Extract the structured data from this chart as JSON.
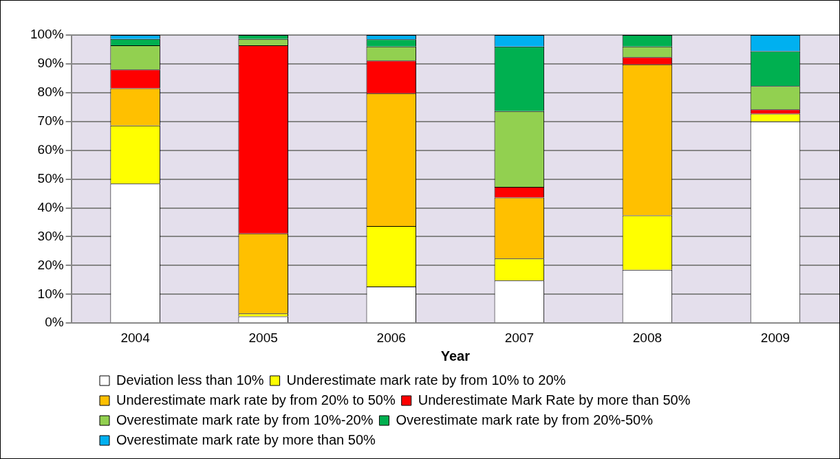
{
  "chart_data": {
    "type": "bar",
    "stacked": true,
    "xlabel": "Year",
    "categories": [
      "2004",
      "2005",
      "2006",
      "2007",
      "2008",
      "2009"
    ],
    "series": [
      {
        "name": "Deviation less than 10%",
        "color": "#ffffff",
        "values": [
          48.4,
          2.3,
          12.7,
          14.8,
          18.5,
          70.0
        ]
      },
      {
        "name": "Underestimate mark rate by from 10% to 20%",
        "color": "#ffff00",
        "values": [
          20.2,
          1.0,
          21.0,
          7.6,
          18.9,
          2.7
        ]
      },
      {
        "name": "Underestimate mark rate by from 20% to 50%",
        "color": "#ffc000",
        "values": [
          12.9,
          27.8,
          46.1,
          21.2,
          52.4,
          0
        ]
      },
      {
        "name": "Underestimate Mark Rate by more than 50%",
        "color": "#ff0000",
        "values": [
          6.5,
          65.3,
          11.3,
          3.7,
          2.5,
          1.5
        ]
      },
      {
        "name": "Overestimate mark rate by from 10%-20%",
        "color": "#92d050",
        "values": [
          8.4,
          2.2,
          4.9,
          26.3,
          3.7,
          8.1
        ]
      },
      {
        "name": "Overestimate mark rate by from 20%-50%",
        "color": "#00b050",
        "values": [
          2.2,
          1.4,
          2.5,
          22.4,
          4.0,
          12.1
        ]
      },
      {
        "name": "Overestimate mark rate by more than 50%",
        "color": "#00b0f0",
        "values": [
          1.4,
          0,
          1.5,
          4.0,
          0,
          5.6
        ]
      }
    ],
    "ylim": [
      0,
      100
    ],
    "yticks": [
      {
        "value": 0,
        "label": "0%"
      },
      {
        "value": 10,
        "label": "10%"
      },
      {
        "value": 20,
        "label": "20%"
      },
      {
        "value": 30,
        "label": "30%"
      },
      {
        "value": 40,
        "label": "40%"
      },
      {
        "value": 50,
        "label": "50%"
      },
      {
        "value": 60,
        "label": "60%"
      },
      {
        "value": 70,
        "label": "70%"
      },
      {
        "value": 80,
        "label": "80%"
      },
      {
        "value": 90,
        "label": "90%"
      },
      {
        "value": 100,
        "label": "100%"
      }
    ],
    "grid": "y",
    "legend": "bottom"
  }
}
